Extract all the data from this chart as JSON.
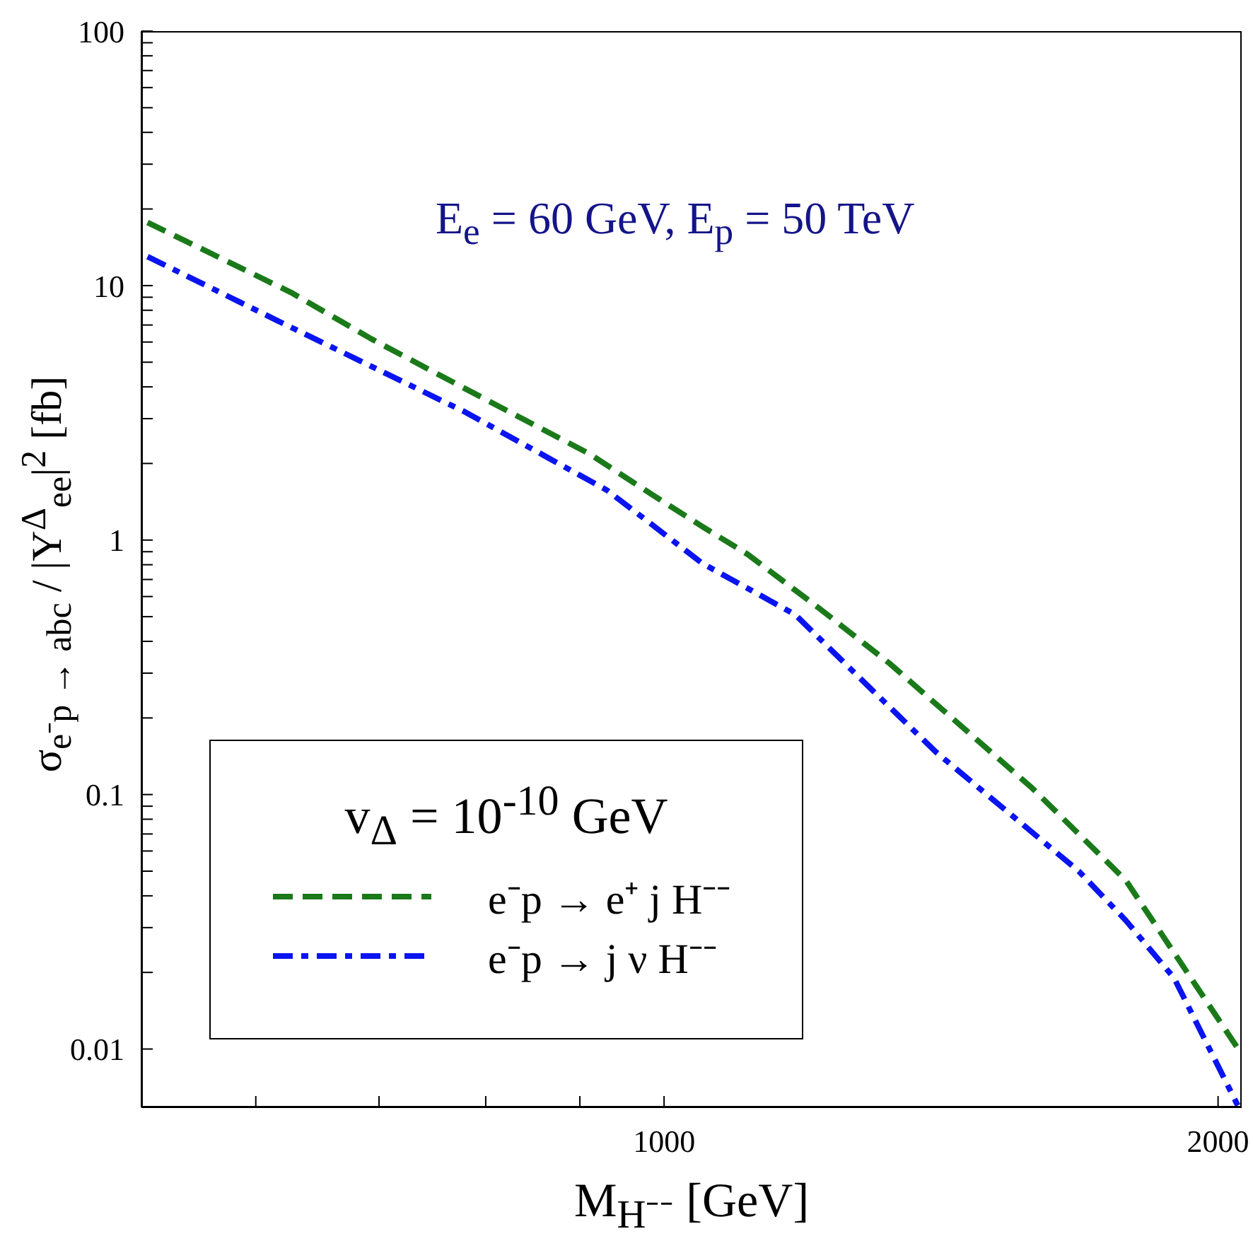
{
  "chart_data": {
    "type": "line",
    "xlabel": "M$_{H⁻⁻}$ [GeV]",
    "ylabel": "σ$_{e⁻p → abc}$ / |Y$^{Δ}$$_{ee}$|$^{2}$ [fb]",
    "legend_title": "v$_{Δ}$ = 10$^{-10}$ GeV",
    "annotations": [
      "E$_{e}$ = 60 GeV, E$_{p}$ = 50 TeV"
    ],
    "log": "xy",
    "legend": "bottom left",
    "marker": "none",
    "xlim": [
      520,
      2060
    ],
    "xticks": [
      {
        "value": 600,
        "label": null
      },
      {
        "value": 700,
        "label": null
      },
      {
        "value": 800,
        "label": null
      },
      {
        "value": 900,
        "label": null
      },
      1000,
      2000
    ],
    "ylim": [
      0.0059,
      100
    ],
    "yticks": [
      0.01,
      {
        "value": 0.02,
        "label": null
      },
      {
        "value": 0.03,
        "label": null
      },
      {
        "value": 0.04,
        "label": null
      },
      {
        "value": 0.05,
        "label": null
      },
      {
        "value": 0.06,
        "label": null
      },
      {
        "value": 0.07,
        "label": null
      },
      {
        "value": 0.08,
        "label": null
      },
      {
        "value": 0.09,
        "label": null
      },
      0.1,
      {
        "value": 0.2,
        "label": null
      },
      {
        "value": 0.3,
        "label": null
      },
      {
        "value": 0.4,
        "label": null
      },
      {
        "value": 0.5,
        "label": null
      },
      {
        "value": 0.6,
        "label": null
      },
      {
        "value": 0.7,
        "label": null
      },
      {
        "value": 0.8,
        "label": null
      },
      {
        "value": 0.9,
        "label": null
      },
      1,
      {
        "value": 2,
        "label": null
      },
      {
        "value": 3,
        "label": null
      },
      {
        "value": 4,
        "label": null
      },
      {
        "value": 5,
        "label": null
      },
      {
        "value": 6,
        "label": null
      },
      {
        "value": 7,
        "label": null
      },
      {
        "value": 8,
        "label": null
      },
      {
        "value": 9,
        "label": null
      },
      10,
      {
        "value": 20,
        "label": null
      },
      {
        "value": 30,
        "label": null
      },
      {
        "value": 40,
        "label": null
      },
      {
        "value": 50,
        "label": null
      },
      {
        "value": 60,
        "label": null
      },
      {
        "value": 70,
        "label": null
      },
      {
        "value": 80,
        "label": null
      },
      {
        "value": 90,
        "label": null
      },
      100
    ],
    "series": [
      {
        "name": "e⁻p → e⁺ j H⁻⁻",
        "color": "#1a7a1a",
        "line_style": "dashed",
        "x": [
          524,
          627,
          694,
          780,
          910,
          985,
          1049,
          1110,
          1214,
          1327,
          1585,
          1680,
          1782,
          2055
        ],
        "values": [
          17.7,
          9.4,
          6.15,
          3.93,
          2.19,
          1.51,
          1.13,
          0.88,
          0.54,
          0.326,
          0.106,
          0.07,
          0.046,
          0.0098
        ]
      },
      {
        "name": "e⁻p → j ν H⁻⁻",
        "color": "#0a14f0",
        "line_style": "dashdot",
        "x": [
          524,
          616,
          694,
          780,
          931,
          985,
          1049,
          1178,
          1286,
          1405,
          1680,
          1782,
          1893,
          2050
        ],
        "values": [
          13,
          7.3,
          4.8,
          3.18,
          1.57,
          1.15,
          0.81,
          0.51,
          0.274,
          0.147,
          0.05,
          0.032,
          0.019,
          0.006
        ]
      }
    ]
  }
}
